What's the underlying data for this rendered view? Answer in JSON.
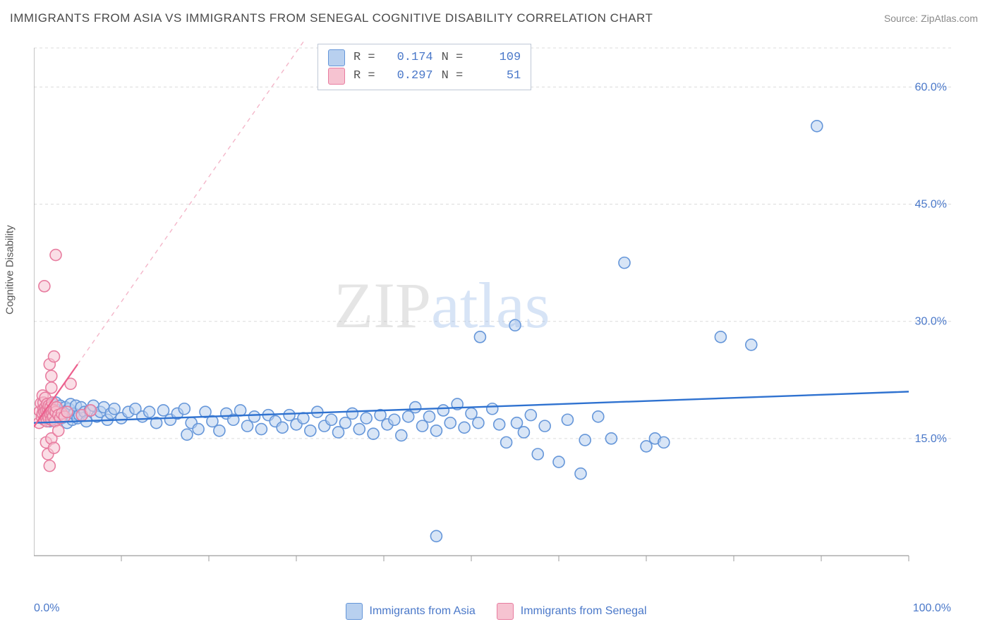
{
  "title": "IMMIGRANTS FROM ASIA VS IMMIGRANTS FROM SENEGAL COGNITIVE DISABILITY CORRELATION CHART",
  "source": "Source: ZipAtlas.com",
  "ylabel": "Cognitive Disability",
  "watermark": {
    "part1": "ZIP",
    "part2": "atlas"
  },
  "chart": {
    "type": "scatter",
    "background_color": "#ffffff",
    "grid_color": "#dcdcdc",
    "axis_color": "#9e9e9e",
    "tick_color": "#9e9e9e",
    "text_color_blue": "#4a78c9",
    "xlim": [
      0,
      100
    ],
    "ylim": [
      0,
      65
    ],
    "x_start_label": "0.0%",
    "x_end_label": "100.0%",
    "y_ticks": [
      15.0,
      30.0,
      45.0,
      60.0
    ],
    "y_tick_labels": [
      "15.0%",
      "30.0%",
      "45.0%",
      "60.0%"
    ],
    "x_minor_ticks": [
      10,
      20,
      30,
      40,
      50,
      60,
      70,
      80,
      90,
      100
    ],
    "marker_radius": 8,
    "marker_stroke_width": 1.6,
    "series": [
      {
        "name": "Immigrants from Asia",
        "legend_label": "Immigrants from Asia",
        "swatch_fill": "#b8d0ef",
        "swatch_stroke": "#6596d9",
        "marker_fill": "#b8d0ef",
        "marker_fill_opacity": 0.55,
        "marker_stroke": "#6596d9",
        "trend": {
          "color": "#2f72d0",
          "width": 2.4,
          "dash": "none",
          "y_at_x0": 17.0,
          "y_at_x100": 21.0
        },
        "stats": {
          "R": "0.174",
          "N": "109"
        },
        "points": [
          [
            1.5,
            18.8
          ],
          [
            1.8,
            17.2
          ],
          [
            2.0,
            19.4
          ],
          [
            2.2,
            18.0
          ],
          [
            2.5,
            19.6
          ],
          [
            2.6,
            17.4
          ],
          [
            2.8,
            18.6
          ],
          [
            3.0,
            19.2
          ],
          [
            3.2,
            17.6
          ],
          [
            3.4,
            18.4
          ],
          [
            3.6,
            19.0
          ],
          [
            3.8,
            17.0
          ],
          [
            4.0,
            18.8
          ],
          [
            4.2,
            19.4
          ],
          [
            4.4,
            17.4
          ],
          [
            4.6,
            18.2
          ],
          [
            4.8,
            19.2
          ],
          [
            5.0,
            17.6
          ],
          [
            5.2,
            18.0
          ],
          [
            5.4,
            19.0
          ],
          [
            5.8,
            18.4
          ],
          [
            6.0,
            17.2
          ],
          [
            6.4,
            18.6
          ],
          [
            6.8,
            19.2
          ],
          [
            7.2,
            17.8
          ],
          [
            7.6,
            18.4
          ],
          [
            8.0,
            19.0
          ],
          [
            8.4,
            17.4
          ],
          [
            8.8,
            18.2
          ],
          [
            9.2,
            18.8
          ],
          [
            10.0,
            17.6
          ],
          [
            10.8,
            18.4
          ],
          [
            11.6,
            18.8
          ],
          [
            12.4,
            17.8
          ],
          [
            13.2,
            18.4
          ],
          [
            14.0,
            17.0
          ],
          [
            14.8,
            18.6
          ],
          [
            15.6,
            17.4
          ],
          [
            16.4,
            18.2
          ],
          [
            17.2,
            18.8
          ],
          [
            17.5,
            15.5
          ],
          [
            18.0,
            17.0
          ],
          [
            18.8,
            16.2
          ],
          [
            19.6,
            18.4
          ],
          [
            20.4,
            17.2
          ],
          [
            21.2,
            16.0
          ],
          [
            22.0,
            18.2
          ],
          [
            22.8,
            17.4
          ],
          [
            23.6,
            18.6
          ],
          [
            24.4,
            16.6
          ],
          [
            25.2,
            17.8
          ],
          [
            26.0,
            16.2
          ],
          [
            26.8,
            18.0
          ],
          [
            27.6,
            17.2
          ],
          [
            28.4,
            16.4
          ],
          [
            29.2,
            18.0
          ],
          [
            30.0,
            16.8
          ],
          [
            30.8,
            17.6
          ],
          [
            31.6,
            16.0
          ],
          [
            32.4,
            18.4
          ],
          [
            33.2,
            16.6
          ],
          [
            34.0,
            17.4
          ],
          [
            34.8,
            15.8
          ],
          [
            35.6,
            17.0
          ],
          [
            36.4,
            18.2
          ],
          [
            37.2,
            16.2
          ],
          [
            38.0,
            17.6
          ],
          [
            38.8,
            15.6
          ],
          [
            39.6,
            18.0
          ],
          [
            40.4,
            16.8
          ],
          [
            41.2,
            17.4
          ],
          [
            42.0,
            15.4
          ],
          [
            42.8,
            17.8
          ],
          [
            43.6,
            19.0
          ],
          [
            44.4,
            16.6
          ],
          [
            45.2,
            17.8
          ],
          [
            46.0,
            16.0
          ],
          [
            46.8,
            18.6
          ],
          [
            47.6,
            17.0
          ],
          [
            48.4,
            19.4
          ],
          [
            49.2,
            16.4
          ],
          [
            50.0,
            18.2
          ],
          [
            50.8,
            17.0
          ],
          [
            46.0,
            2.5
          ],
          [
            52.4,
            18.8
          ],
          [
            53.2,
            16.8
          ],
          [
            54.0,
            14.5
          ],
          [
            55.2,
            17.0
          ],
          [
            56.0,
            15.8
          ],
          [
            56.8,
            18.0
          ],
          [
            57.6,
            13.0
          ],
          [
            58.4,
            16.6
          ],
          [
            51.0,
            28.0
          ],
          [
            55.0,
            29.5
          ],
          [
            60.0,
            12.0
          ],
          [
            61.0,
            17.4
          ],
          [
            62.5,
            10.5
          ],
          [
            63.0,
            14.8
          ],
          [
            64.5,
            17.8
          ],
          [
            66.0,
            15.0
          ],
          [
            67.5,
            37.5
          ],
          [
            70.0,
            14.0
          ],
          [
            71.0,
            15.0
          ],
          [
            72.0,
            14.5
          ],
          [
            78.5,
            28.0
          ],
          [
            82.0,
            27.0
          ],
          [
            89.5,
            55.0
          ]
        ]
      },
      {
        "name": "Immigrants from Senegal",
        "legend_label": "Immigrants from Senegal",
        "swatch_fill": "#f6c3d1",
        "swatch_stroke": "#e87da0",
        "marker_fill": "#f6c3d1",
        "marker_fill_opacity": 0.55,
        "marker_stroke": "#e87da0",
        "trend": {
          "color": "#ec5f8d",
          "width": 2.2,
          "dash": "none",
          "y_at_x0": 16.5,
          "y_at_x5": 24.5
        },
        "trend_extrapolate": {
          "color": "#f4b6c9",
          "width": 1.4,
          "dash": "6 6",
          "from_x": 5,
          "to_x": 45
        },
        "stats": {
          "R": "0.297",
          "N": "51"
        },
        "points": [
          [
            0.6,
            17.0
          ],
          [
            0.7,
            18.5
          ],
          [
            0.8,
            19.5
          ],
          [
            0.9,
            17.8
          ],
          [
            1.0,
            18.2
          ],
          [
            1.0,
            20.5
          ],
          [
            1.1,
            18.8
          ],
          [
            1.1,
            19.6
          ],
          [
            1.2,
            17.4
          ],
          [
            1.2,
            18.4
          ],
          [
            1.3,
            19.0
          ],
          [
            1.3,
            20.2
          ],
          [
            1.4,
            17.6
          ],
          [
            1.4,
            18.6
          ],
          [
            1.5,
            19.4
          ],
          [
            1.5,
            17.2
          ],
          [
            1.6,
            18.0
          ],
          [
            1.6,
            18.8
          ],
          [
            1.7,
            19.2
          ],
          [
            1.7,
            17.6
          ],
          [
            1.8,
            24.5
          ],
          [
            1.8,
            18.4
          ],
          [
            1.9,
            18.0
          ],
          [
            1.9,
            19.0
          ],
          [
            2.0,
            17.4
          ],
          [
            2.0,
            23.0
          ],
          [
            2.1,
            18.2
          ],
          [
            2.1,
            19.6
          ],
          [
            2.2,
            17.8
          ],
          [
            2.3,
            18.6
          ],
          [
            2.3,
            25.5
          ],
          [
            2.4,
            17.2
          ],
          [
            2.5,
            18.4
          ],
          [
            2.6,
            19.0
          ],
          [
            2.8,
            18.0
          ],
          [
            3.0,
            17.6
          ],
          [
            3.2,
            18.2
          ],
          [
            3.5,
            17.8
          ],
          [
            3.8,
            18.4
          ],
          [
            4.2,
            22.0
          ],
          [
            1.4,
            14.5
          ],
          [
            1.6,
            13.0
          ],
          [
            1.8,
            11.5
          ],
          [
            2.0,
            15.0
          ],
          [
            2.3,
            13.8
          ],
          [
            2.8,
            16.0
          ],
          [
            2.0,
            21.5
          ],
          [
            1.2,
            34.5
          ],
          [
            2.5,
            38.5
          ],
          [
            5.5,
            18.0
          ],
          [
            6.5,
            18.6
          ]
        ]
      }
    ],
    "bottom_legend": [
      {
        "label": "Immigrants from Asia",
        "fill": "#b8d0ef",
        "stroke": "#6596d9"
      },
      {
        "label": "Immigrants from Senegal",
        "fill": "#f6c3d1",
        "stroke": "#e87da0"
      }
    ]
  }
}
